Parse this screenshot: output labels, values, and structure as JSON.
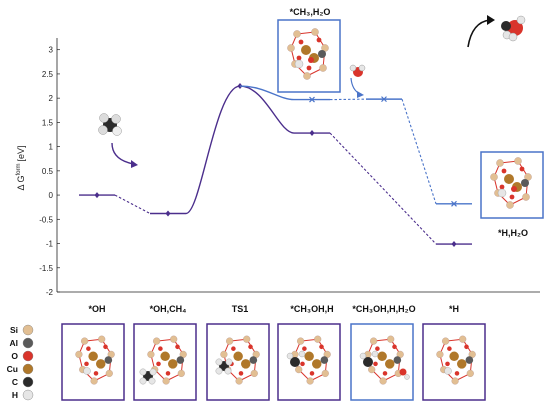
{
  "chart_data": {
    "type": "line",
    "ylabel": "Δ G",
    "ylabel_sup": "form",
    "ylabel_unit": "[eV]",
    "ylim": [
      -2,
      3.2
    ],
    "yticks": [
      -2,
      -1.5,
      -1,
      -0.5,
      0,
      0.5,
      1,
      1.5,
      2,
      2.5,
      3
    ],
    "ytick_labels": [
      "-2",
      "-1.5",
      "-1",
      "-0.5",
      "0",
      "0.5",
      "1",
      "1.5",
      "2",
      "2.5",
      "3"
    ],
    "categories": [
      "*OH",
      "*OH,CH₄",
      "TS1",
      "*CH₃OH,H",
      "*CH₃OH,H,H₂O",
      "*H"
    ],
    "series": [
      {
        "color": "#4b2e8c",
        "points": [
          {
            "state": "*OH",
            "y": 0.0
          },
          {
            "state": "*OH,CH₄",
            "y": -0.38
          },
          {
            "state": "TS1",
            "y": 2.25
          },
          {
            "state": "*CH₃OH,H",
            "y": 1.28
          },
          {
            "state": "*H",
            "y": -1.01
          }
        ]
      },
      {
        "color": "#4a74c9",
        "points": [
          {
            "state": "*CH₃OH,H",
            "y": 1.97
          },
          {
            "state": "*CH₃OH,H,H₂O",
            "y": 1.98
          },
          {
            "state": "*H",
            "y": -0.18
          }
        ]
      }
    ],
    "annotations": {
      "top_box": "*CH₃,H₂O",
      "right_box": "*H,H₂O"
    }
  },
  "legend": {
    "elements": [
      {
        "symbol": "Si",
        "color": "#e2bf93"
      },
      {
        "symbol": "Al",
        "color": "#5a5a5a"
      },
      {
        "symbol": "O",
        "color": "#d9342b"
      },
      {
        "symbol": "Cu",
        "color": "#b0782a"
      },
      {
        "symbol": "C",
        "color": "#2b2b2b"
      },
      {
        "symbol": "H",
        "color": "#e6e6e6"
      }
    ]
  },
  "bottom_boxes": [
    {
      "border": "#4b2e8c",
      "adsorbate": "OH"
    },
    {
      "border": "#4b2e8c",
      "adsorbate": "CH4"
    },
    {
      "border": "#4b2e8c",
      "adsorbate": "TS"
    },
    {
      "border": "#4b2e8c",
      "adsorbate": "CH3OH"
    },
    {
      "border": "#4a74c9",
      "adsorbate": "CH3OH-H2O"
    },
    {
      "border": "#4b2e8c",
      "adsorbate": "H"
    }
  ],
  "colors": {
    "path_main": "#4b2e8c",
    "path_water": "#4a74c9",
    "axis": "#222222"
  }
}
